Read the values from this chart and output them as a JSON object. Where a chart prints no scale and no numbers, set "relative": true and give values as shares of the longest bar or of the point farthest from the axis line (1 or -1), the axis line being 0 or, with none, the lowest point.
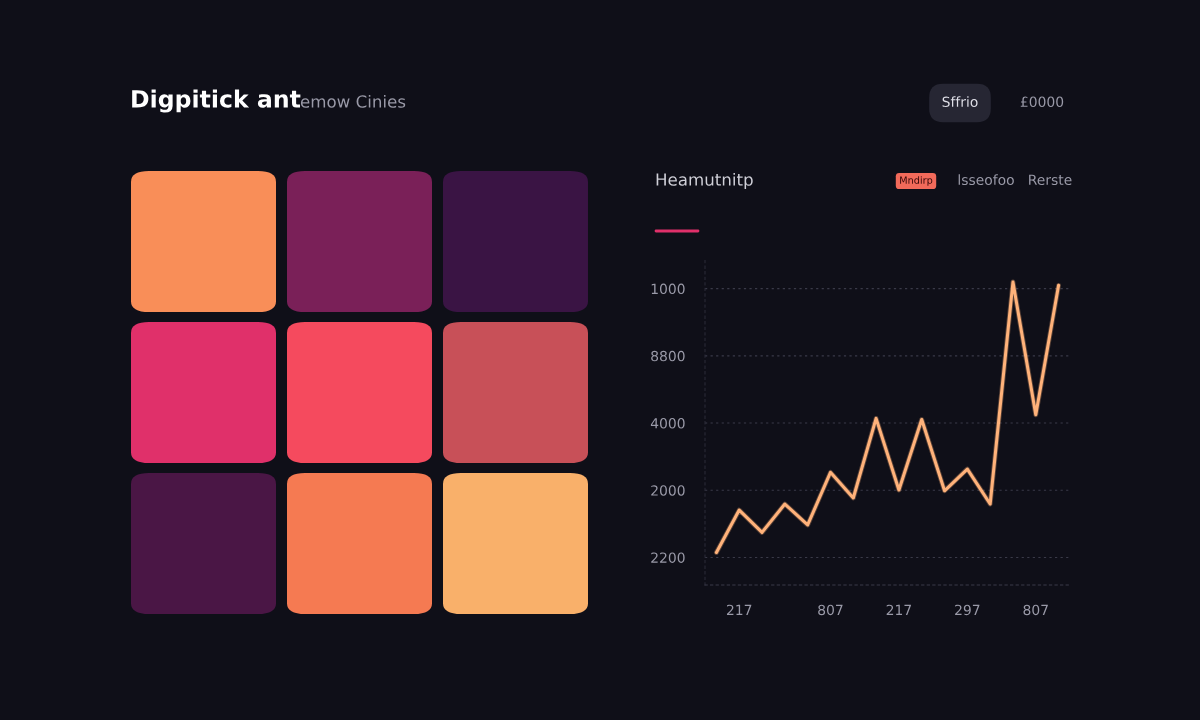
{
  "chart_data": {
    "type": "line",
    "title": "Digpitick ant",
    "subtitle": "emow Cinies",
    "annotations": [
      "Sffrio",
      "£0000",
      "Heamutnitp",
      "Mndirp",
      "lsseofoo",
      "Rerste",
      "2200",
      "2000",
      "4000",
      "8800",
      "1000"
    ],
    "relative": true,
    "categories": [
      null,
      "217",
      null,
      null,
      null,
      "807",
      null,
      null,
      "217",
      null,
      null,
      "297",
      null,
      null,
      "807",
      null
    ],
    "series": [
      {
        "color": "#ffb27a",
        "values": [
          0.018,
          0.172,
          0.091,
          0.194,
          0.118,
          0.309,
          0.216,
          0.505,
          0.245,
          0.501,
          0.242,
          0.321,
          0.194,
          1,
          0.518,
          0.988
        ]
      }
    ],
    "grid": "y",
    "marker": "none",
    "line_style": "solid"
  }
}
